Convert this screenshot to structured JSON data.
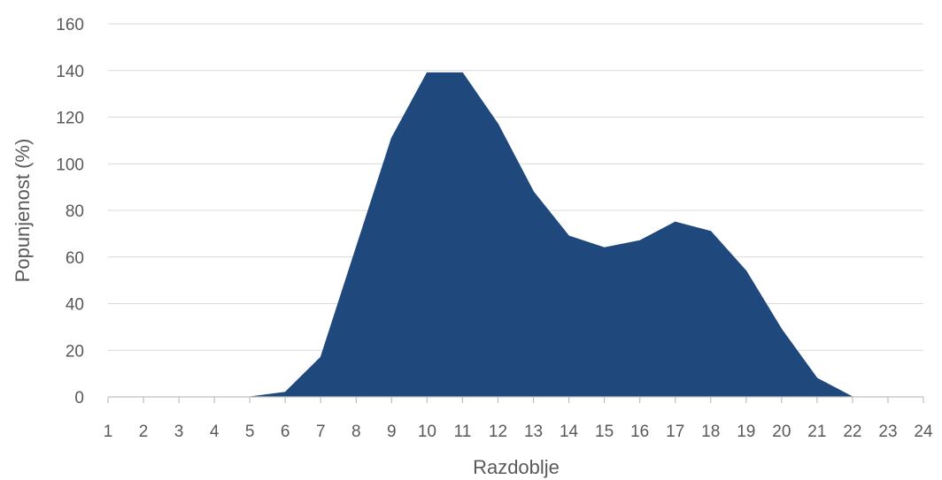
{
  "chart_data": {
    "type": "area",
    "title": "",
    "xlabel": "Razdoblje",
    "ylabel": "Popunjenost (%)",
    "ylim": [
      0,
      160
    ],
    "y_ticks": [
      0,
      20,
      40,
      60,
      80,
      100,
      120,
      140,
      160
    ],
    "x_ticks": [
      "1",
      "2",
      "3",
      "4",
      "5",
      "6",
      "7",
      "8",
      "9",
      "10",
      "11",
      "12",
      "13",
      "14",
      "15",
      "16",
      "17",
      "18",
      "19",
      "20",
      "21",
      "22",
      "23",
      "24"
    ],
    "grid": "horizontal",
    "legend": "none",
    "series": [
      {
        "color": "#1F497D",
        "x": [
          5,
          6,
          7,
          8,
          9,
          10,
          11,
          12,
          13,
          14,
          15,
          16,
          17,
          18,
          19,
          20,
          21,
          22
        ],
        "values": [
          0,
          2,
          17,
          64,
          111,
          139,
          139,
          117,
          88,
          69,
          64,
          67,
          75,
          71,
          54,
          29,
          8,
          0
        ]
      }
    ],
    "colors": {
      "grid": "#D9D9D9",
      "axis": "#BFBFBF",
      "text": "#595959"
    }
  }
}
